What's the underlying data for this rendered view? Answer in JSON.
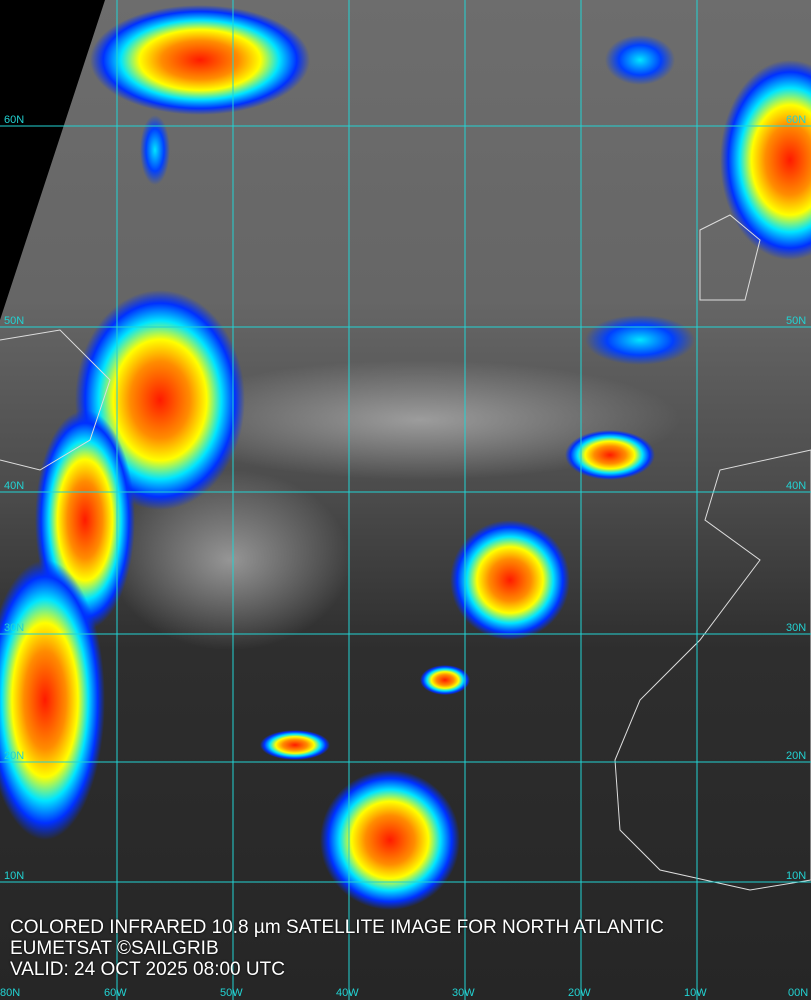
{
  "map": {
    "title": "COLORED INFRARED 10.8 µm SATELLITE IMAGE FOR NORTH ATLANTIC",
    "credit": "EUMETSAT ©SAILGRIB",
    "valid": "VALID:  24 OCT 2025 08:00 UTC",
    "grid_color": "#22d3d3",
    "latitudes": [
      {
        "value": 60,
        "label": "60N"
      },
      {
        "value": 50,
        "label": "50N"
      },
      {
        "value": 40,
        "label": "40N"
      },
      {
        "value": 30,
        "label": "30N"
      },
      {
        "value": 20,
        "label": "20N"
      },
      {
        "value": 10,
        "label": "10N"
      }
    ],
    "longitudes": [
      {
        "value": -60,
        "label": "60W"
      },
      {
        "value": -50,
        "label": "50W"
      },
      {
        "value": -40,
        "label": "40W"
      },
      {
        "value": -30,
        "label": "30W"
      },
      {
        "value": -20,
        "label": "20W"
      },
      {
        "value": -10,
        "label": "10W"
      },
      {
        "value": 0,
        "label": "00N"
      }
    ],
    "corner_label": "80N",
    "palette": [
      "#0000ff",
      "#00aaff",
      "#00ffff",
      "#ffff00",
      "#ff8000",
      "#ff0000"
    ]
  }
}
